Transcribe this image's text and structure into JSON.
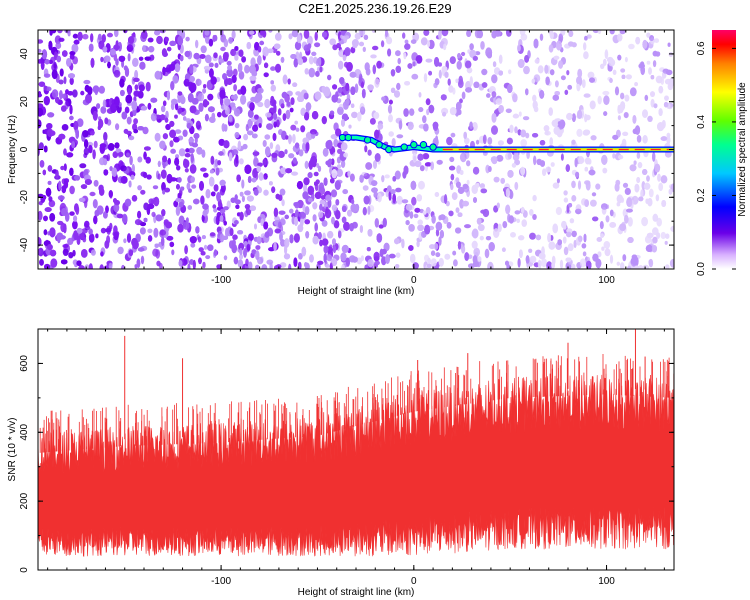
{
  "title": "C2E1.2025.236.19.26.E29",
  "chart_data": [
    {
      "type": "heatmap",
      "xlabel": "Height of straight line (km)",
      "ylabel": "Frequency (Hz)",
      "xlim": [
        -195,
        135
      ],
      "ylim": [
        -50,
        50
      ],
      "x_ticks": [
        -100,
        0,
        100
      ],
      "x_tick_labels": [
        "-100",
        "0",
        "100"
      ],
      "y_ticks": [
        -40,
        -20,
        0,
        20,
        40
      ],
      "y_tick_labels": [
        "-40",
        "-20",
        "0",
        "20",
        "40"
      ],
      "colorbar": {
        "label": "Normalized spectral amplitude",
        "range": [
          0.0,
          0.65
        ],
        "ticks": [
          0.0,
          0.2,
          0.4,
          0.6
        ],
        "tick_labels": [
          "0.0",
          "0.2",
          "0.4",
          "0.6"
        ],
        "colors": [
          "#ffffff",
          "#6a00e8",
          "#0000ff",
          "#00c8ff",
          "#00ff90",
          "#60ff00",
          "#ffff00",
          "#ff8000",
          "#ff0000",
          "#ff0066"
        ]
      },
      "ridge": {
        "description_points_x": [
          -37,
          -30,
          -22,
          -15,
          -10,
          0,
          10,
          20,
          40,
          60,
          80,
          100,
          120,
          135
        ],
        "description_points_y": [
          5,
          5,
          4,
          1,
          0,
          1,
          0,
          0,
          0,
          0,
          0,
          0,
          0,
          0
        ]
      }
    },
    {
      "type": "line",
      "xlabel": "Height of straight line (km)",
      "ylabel": "SNR (10 * v/v)",
      "xlim": [
        -195,
        135
      ],
      "ylim": [
        0,
        700
      ],
      "x_ticks": [
        -100,
        0,
        100
      ],
      "x_tick_labels": [
        "-100",
        "0",
        "100"
      ],
      "y_ticks": [
        0,
        200,
        400,
        600
      ],
      "y_tick_labels": [
        "0",
        "200",
        "400",
        "600"
      ],
      "color": "#f03030",
      "envelope": {
        "x": [
          -195,
          -150,
          -100,
          -50,
          0,
          50,
          100,
          135
        ],
        "low": [
          40,
          40,
          40,
          40,
          40,
          60,
          60,
          60
        ],
        "mid": [
          180,
          180,
          185,
          190,
          230,
          260,
          270,
          270
        ],
        "high": [
          400,
          420,
          430,
          450,
          520,
          560,
          570,
          560
        ]
      },
      "spikes": [
        {
          "x": -150,
          "y": 680
        },
        {
          "x": -120,
          "y": 615
        },
        {
          "x": 2,
          "y": 610
        },
        {
          "x": 28,
          "y": 630
        },
        {
          "x": 80,
          "y": 660
        },
        {
          "x": 115,
          "y": 700
        },
        {
          "x": 120,
          "y": 620
        }
      ]
    }
  ]
}
